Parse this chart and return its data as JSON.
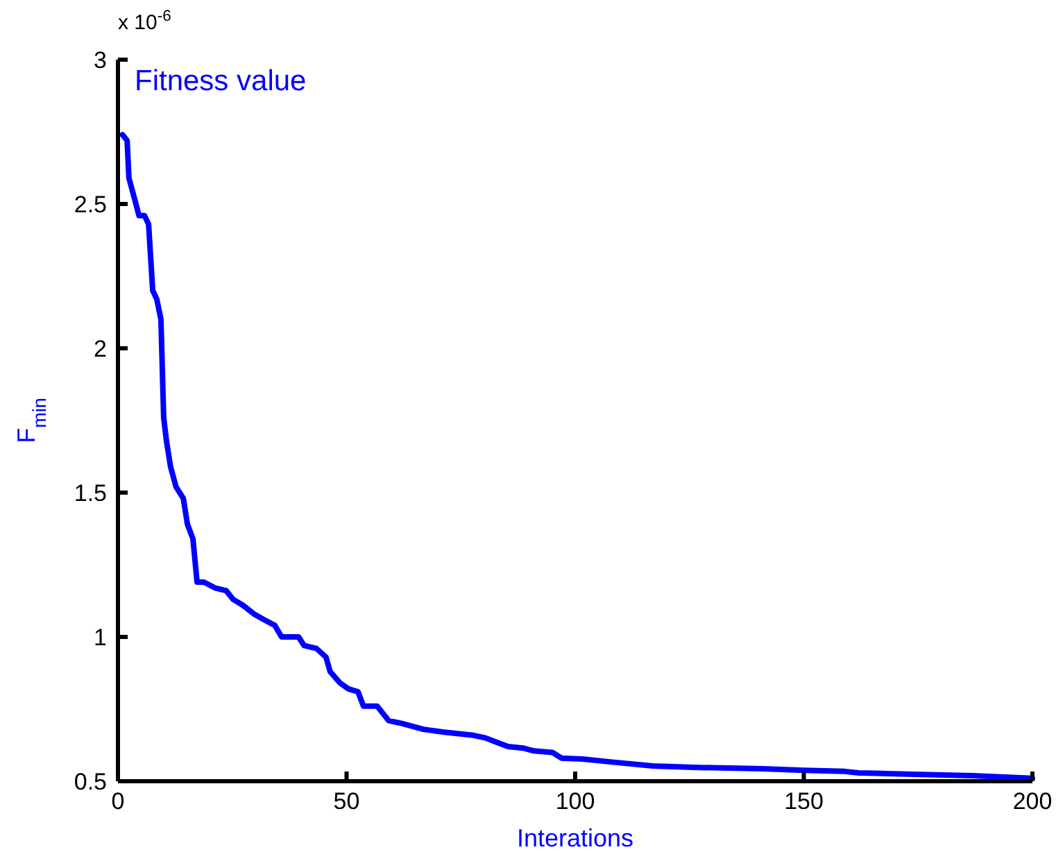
{
  "chart_data": {
    "type": "line",
    "title": "Fitness value",
    "xlabel": "Interations",
    "ylabel": "F$_{min}$",
    "annotations": [
      "x 10$^{-6}$"
    ],
    "xlim": [
      0,
      200
    ],
    "xticks": [
      0,
      50,
      100,
      150,
      200
    ],
    "ylim": [
      0.5,
      3
    ],
    "yticks": [
      0.5,
      1,
      1.5,
      2,
      2.5,
      3
    ],
    "grid": false,
    "marker": "none",
    "line_style": "solid",
    "series": [
      {
        "color": "#0000ff",
        "x": [
          1,
          2,
          2.4,
          3.6,
          4.6,
          5.8,
          6.7,
          7.6,
          8.5,
          9.4,
          10,
          10.6,
          11.5,
          12.7,
          14.3,
          15.2,
          16.4,
          17.3,
          18.8,
          21.2,
          23.7,
          25.2,
          27.3,
          29.7,
          31.9,
          34.3,
          35.8,
          39.5,
          40.7,
          43.4,
          45.5,
          46.4,
          48.6,
          50.4,
          52.5,
          53.7,
          56.7,
          59.2,
          62.2,
          66.8,
          71.3,
          77.4,
          80.4,
          82,
          85.3,
          88.6,
          91,
          95,
          97,
          101.7,
          107.7,
          117,
          126,
          141,
          150,
          159,
          162,
          174,
          187,
          200
        ],
        "values": [
          2.74,
          2.72,
          2.59,
          2.52,
          2.46,
          2.46,
          2.43,
          2.2,
          2.17,
          2.1,
          1.76,
          1.68,
          1.59,
          1.52,
          1.48,
          1.39,
          1.34,
          1.19,
          1.19,
          1.17,
          1.16,
          1.13,
          1.11,
          1.08,
          1.06,
          1.04,
          1.0,
          1.0,
          0.97,
          0.96,
          0.93,
          0.88,
          0.84,
          0.82,
          0.81,
          0.76,
          0.76,
          0.71,
          0.7,
          0.68,
          0.67,
          0.66,
          0.65,
          0.64,
          0.62,
          0.615,
          0.605,
          0.6,
          0.58,
          0.577,
          0.567,
          0.553,
          0.548,
          0.543,
          0.538,
          0.534,
          0.529,
          0.524,
          0.519,
          0.51
        ]
      }
    ]
  }
}
